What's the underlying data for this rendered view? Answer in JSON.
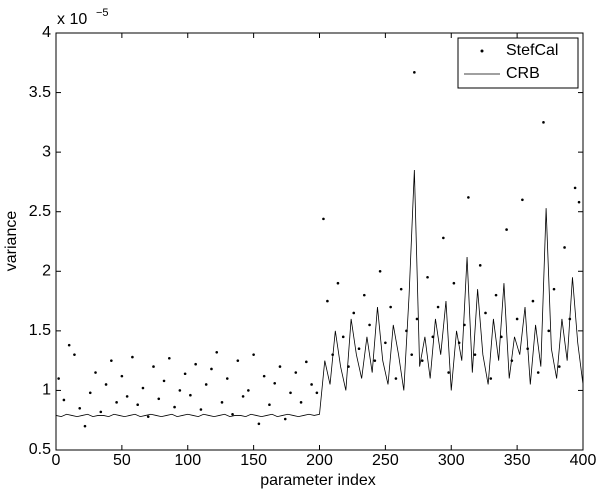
{
  "chart_data": {
    "type": "line",
    "xlabel": "parameter index",
    "ylabel": "variance",
    "y_multiplier": {
      "base": "x 10",
      "exponent": "−5"
    },
    "xlim": [
      0,
      400
    ],
    "xticks": [
      0,
      50,
      100,
      150,
      200,
      250,
      300,
      350,
      400
    ],
    "ylim": [
      0.5,
      4
    ],
    "yticks": [
      0.5,
      1,
      1.5,
      2,
      2.5,
      3,
      3.5,
      4
    ],
    "grid": false,
    "legend": "northeast",
    "series": [
      {
        "name": "StefCal",
        "mode": "markers",
        "color": "#000000",
        "x": [
          2,
          6,
          10,
          14,
          18,
          22,
          26,
          30,
          34,
          38,
          42,
          46,
          50,
          54,
          58,
          62,
          66,
          70,
          74,
          78,
          82,
          86,
          90,
          94,
          98,
          102,
          106,
          110,
          114,
          118,
          122,
          126,
          130,
          134,
          138,
          142,
          146,
          150,
          154,
          158,
          162,
          166,
          170,
          174,
          178,
          182,
          186,
          190,
          194,
          198,
          203,
          206,
          210,
          214,
          218,
          222,
          226,
          230,
          234,
          238,
          242,
          246,
          250,
          254,
          258,
          262,
          266,
          270,
          272,
          274,
          278,
          282,
          286,
          290,
          294,
          298,
          302,
          306,
          310,
          313,
          318,
          322,
          326,
          330,
          334,
          338,
          342,
          346,
          350,
          354,
          358,
          362,
          366,
          370,
          374,
          378,
          382,
          386,
          390,
          394,
          397
        ],
        "values": [
          1.1,
          0.92,
          1.38,
          1.3,
          0.85,
          0.7,
          0.98,
          1.15,
          0.82,
          1.05,
          1.25,
          0.9,
          1.12,
          0.95,
          1.28,
          0.88,
          1.02,
          0.78,
          1.2,
          0.93,
          1.08,
          1.27,
          0.86,
          1.0,
          1.14,
          0.96,
          1.22,
          0.84,
          1.05,
          1.18,
          1.32,
          0.9,
          1.1,
          0.8,
          1.25,
          0.95,
          1.0,
          1.3,
          0.72,
          1.12,
          0.88,
          1.06,
          1.2,
          0.76,
          0.98,
          1.15,
          0.9,
          1.24,
          1.05,
          0.98,
          2.44,
          1.75,
          1.3,
          1.9,
          1.45,
          1.2,
          1.65,
          1.35,
          1.8,
          1.55,
          1.25,
          2.0,
          1.4,
          1.7,
          1.1,
          1.85,
          1.5,
          1.3,
          3.67,
          1.6,
          1.25,
          1.95,
          1.45,
          1.7,
          2.28,
          1.15,
          1.9,
          1.4,
          1.55,
          2.62,
          1.3,
          2.05,
          1.65,
          1.1,
          1.8,
          1.45,
          2.35,
          1.25,
          1.6,
          2.6,
          1.35,
          1.75,
          1.15,
          3.25,
          1.5,
          1.85,
          1.2,
          2.2,
          1.6,
          2.7,
          2.58
        ]
      },
      {
        "name": "CRB",
        "mode": "lines",
        "color": "#000000",
        "x": [
          0,
          4,
          8,
          12,
          16,
          20,
          24,
          28,
          32,
          36,
          40,
          44,
          48,
          52,
          56,
          60,
          64,
          68,
          72,
          76,
          80,
          84,
          88,
          92,
          96,
          100,
          104,
          108,
          112,
          116,
          120,
          124,
          128,
          132,
          136,
          140,
          144,
          148,
          152,
          156,
          160,
          164,
          168,
          172,
          176,
          180,
          184,
          188,
          192,
          196,
          200,
          204,
          208,
          212,
          216,
          220,
          224,
          228,
          232,
          236,
          240,
          244,
          248,
          252,
          256,
          260,
          264,
          268,
          272,
          276,
          280,
          284,
          288,
          292,
          296,
          300,
          304,
          308,
          312,
          316,
          320,
          324,
          328,
          332,
          336,
          340,
          344,
          348,
          352,
          356,
          360,
          364,
          368,
          372,
          376,
          380,
          384,
          388,
          392,
          396,
          400
        ],
        "values": [
          0.79,
          0.78,
          0.8,
          0.79,
          0.78,
          0.79,
          0.8,
          0.78,
          0.79,
          0.79,
          0.78,
          0.8,
          0.79,
          0.78,
          0.79,
          0.8,
          0.78,
          0.79,
          0.8,
          0.79,
          0.78,
          0.79,
          0.8,
          0.78,
          0.79,
          0.8,
          0.79,
          0.78,
          0.8,
          0.79,
          0.78,
          0.79,
          0.8,
          0.78,
          0.79,
          0.79,
          0.78,
          0.8,
          0.79,
          0.78,
          0.79,
          0.8,
          0.78,
          0.79,
          0.8,
          0.79,
          0.78,
          0.79,
          0.8,
          0.79,
          0.8,
          1.25,
          1.05,
          1.5,
          1.2,
          1.0,
          1.6,
          1.3,
          1.1,
          1.45,
          1.15,
          1.7,
          1.25,
          1.05,
          1.55,
          1.3,
          1.0,
          1.8,
          2.85,
          1.2,
          1.45,
          1.1,
          1.6,
          1.3,
          1.75,
          1.0,
          1.5,
          1.25,
          2.12,
          1.15,
          1.85,
          1.3,
          1.05,
          1.6,
          1.25,
          1.9,
          1.1,
          1.45,
          1.3,
          1.7,
          1.05,
          1.55,
          1.2,
          2.53,
          1.35,
          1.1,
          1.6,
          1.25,
          1.95,
          1.4,
          1.05
        ]
      }
    ]
  }
}
